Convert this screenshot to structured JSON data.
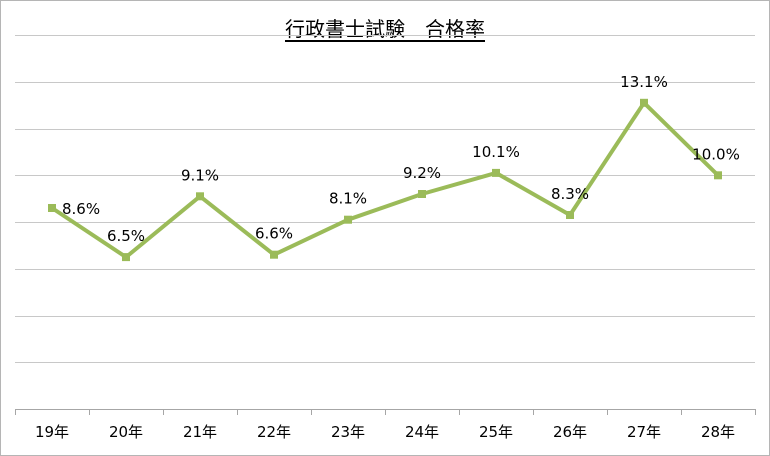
{
  "chart_data": {
    "type": "line",
    "title": "行政書士試験　合格率",
    "categories": [
      "19年",
      "20年",
      "21年",
      "22年",
      "23年",
      "24年",
      "25年",
      "26年",
      "27年",
      "28年"
    ],
    "values": [
      8.6,
      6.5,
      9.1,
      6.6,
      8.1,
      9.2,
      10.1,
      8.3,
      13.1,
      10.0
    ],
    "data_labels": [
      "8.6%",
      "6.5%",
      "9.1%",
      "6.6%",
      "8.1%",
      "9.2%",
      "10.1%",
      "8.3%",
      "13.1%",
      "10.0%"
    ],
    "ylim": [
      0,
      16
    ],
    "y_gridline_step": 2,
    "y_tick_labels_shown": false,
    "grid": true,
    "legend": "none",
    "line_color": "#9bbb59",
    "marker_color": "#9bbb59",
    "gridline_color": "#c8c8c8"
  }
}
